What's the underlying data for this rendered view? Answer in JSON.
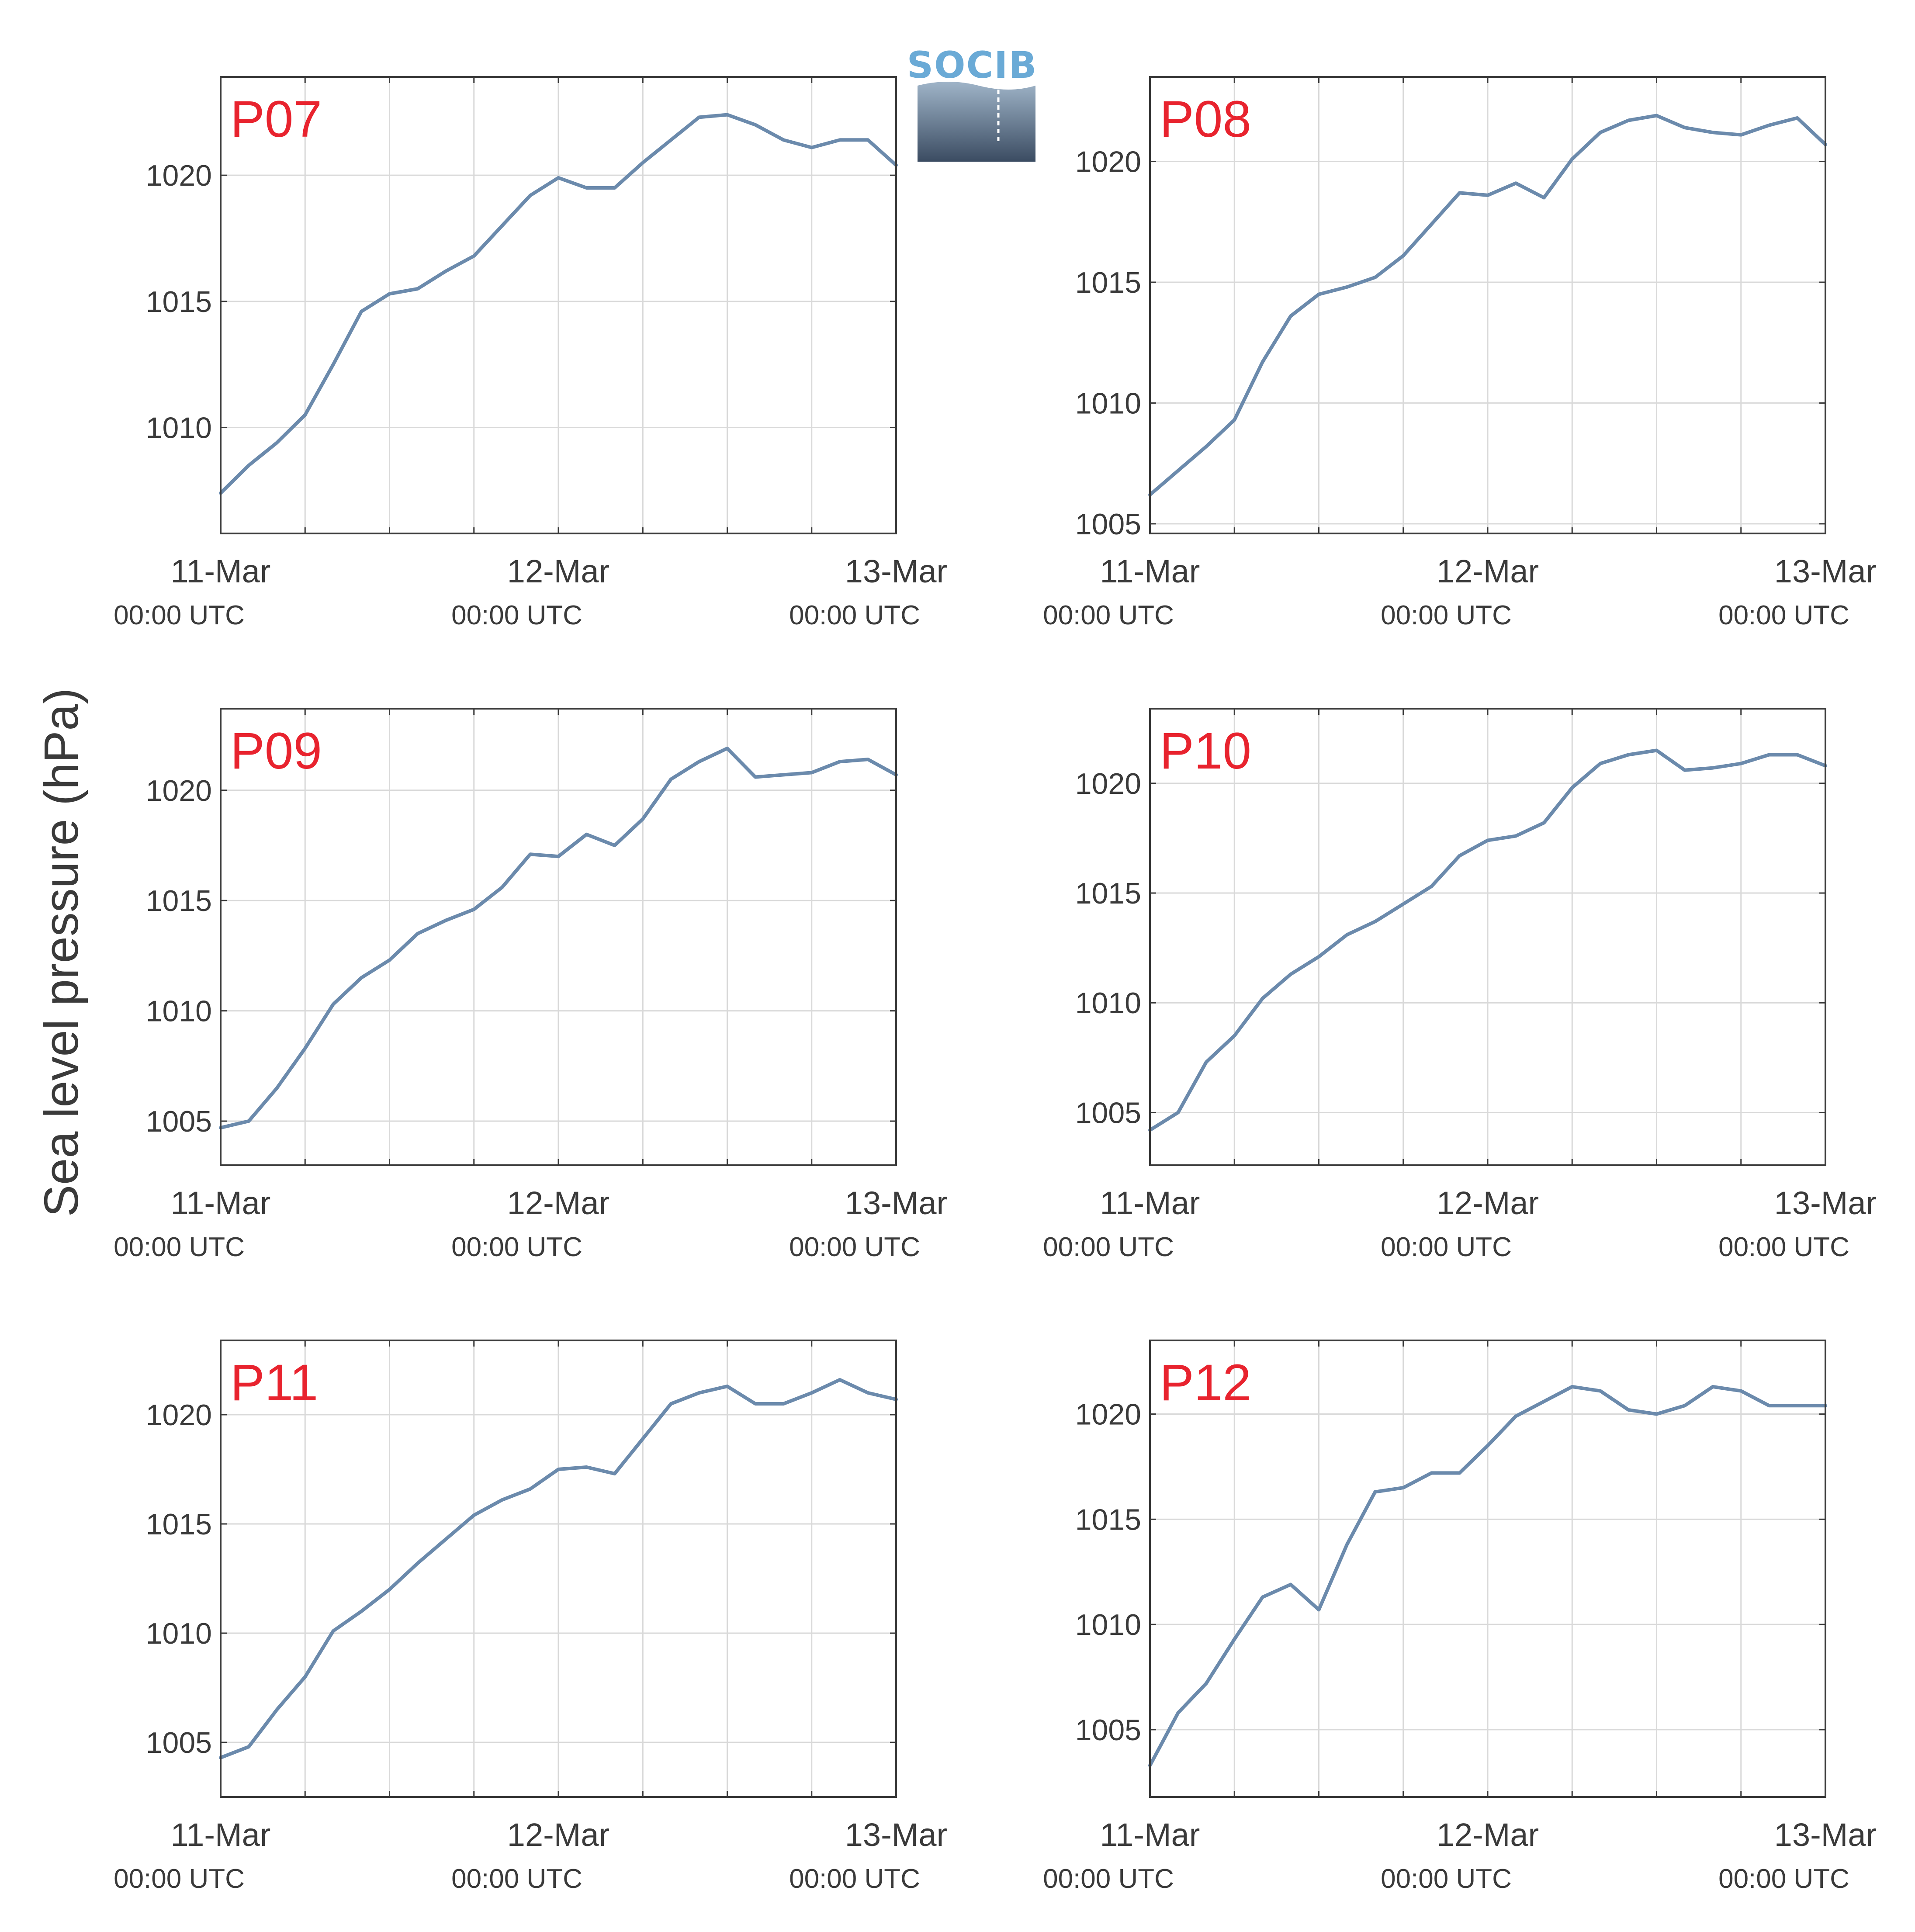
{
  "ylabel": "Sea level pressure (hPa)",
  "logo_text": "SOCIB",
  "colors": {
    "line": "#6b8aac",
    "panel_label": "#e8232e",
    "grid": "#d9d9d9",
    "axis": "#3a3a3a",
    "text": "#3a3a3a"
  },
  "x_ticks": [
    {
      "date": "11-Mar",
      "time": "00:00 UTC"
    },
    {
      "date": "12-Mar",
      "time": "00:00 UTC"
    },
    {
      "date": "13-Mar",
      "time": "00:00 UTC"
    }
  ],
  "chart_data": [
    {
      "type": "line",
      "panel_label": "P07",
      "xlim": [
        "2020-03-11T00:00",
        "2020-03-13T00:00"
      ],
      "ylim": [
        1005.8,
        1023.9
      ],
      "yticks": [
        1010,
        1015,
        1020
      ],
      "grid": true,
      "series": [
        {
          "x": [
            "2020-03-11T00:00",
            "2020-03-11T02:00",
            "2020-03-11T04:00",
            "2020-03-11T06:00",
            "2020-03-11T08:00",
            "2020-03-11T10:00",
            "2020-03-11T12:00",
            "2020-03-11T14:00",
            "2020-03-11T16:00",
            "2020-03-11T18:00",
            "2020-03-11T20:00",
            "2020-03-11T22:00",
            "2020-03-12T00:00",
            "2020-03-12T02:00",
            "2020-03-12T04:00",
            "2020-03-12T06:00",
            "2020-03-12T08:00",
            "2020-03-12T10:00",
            "2020-03-12T12:00",
            "2020-03-12T14:00",
            "2020-03-12T16:00",
            "2020-03-12T18:00",
            "2020-03-12T20:00",
            "2020-03-12T22:00",
            "2020-03-13T00:00"
          ],
          "y": [
            1007.4,
            1008.5,
            1009.4,
            1010.5,
            1012.5,
            1014.6,
            1015.3,
            1015.5,
            1016.2,
            1016.8,
            1018.0,
            1019.2,
            1019.9,
            1019.5,
            1019.5,
            1020.5,
            1021.4,
            1022.3,
            1022.4,
            1022.0,
            1021.4,
            1021.1,
            1021.4,
            1021.4,
            1020.4
          ]
        }
      ]
    },
    {
      "type": "line",
      "panel_label": "P08",
      "xlim": [
        "2020-03-11T00:00",
        "2020-03-13T00:00"
      ],
      "ylim": [
        1004.6,
        1023.5
      ],
      "yticks": [
        1005,
        1010,
        1015,
        1020
      ],
      "grid": true,
      "series": [
        {
          "x": [
            "2020-03-11T00:00",
            "2020-03-11T02:00",
            "2020-03-11T04:00",
            "2020-03-11T06:00",
            "2020-03-11T08:00",
            "2020-03-11T10:00",
            "2020-03-11T12:00",
            "2020-03-11T14:00",
            "2020-03-11T16:00",
            "2020-03-11T18:00",
            "2020-03-11T20:00",
            "2020-03-11T22:00",
            "2020-03-12T00:00",
            "2020-03-12T02:00",
            "2020-03-12T04:00",
            "2020-03-12T06:00",
            "2020-03-12T08:00",
            "2020-03-12T10:00",
            "2020-03-12T12:00",
            "2020-03-12T14:00",
            "2020-03-12T16:00",
            "2020-03-12T18:00",
            "2020-03-12T20:00",
            "2020-03-12T22:00",
            "2020-03-13T00:00"
          ],
          "y": [
            1006.2,
            1007.2,
            1008.2,
            1009.3,
            1011.7,
            1013.6,
            1014.5,
            1014.8,
            1015.2,
            1016.1,
            1017.4,
            1018.7,
            1018.6,
            1019.1,
            1018.5,
            1020.1,
            1021.2,
            1021.7,
            1021.9,
            1021.4,
            1021.2,
            1021.1,
            1021.5,
            1021.8,
            1020.7
          ]
        }
      ]
    },
    {
      "type": "line",
      "panel_label": "P09",
      "xlim": [
        "2020-03-11T00:00",
        "2020-03-13T00:00"
      ],
      "ylim": [
        1003.0,
        1023.7
      ],
      "yticks": [
        1005,
        1010,
        1015,
        1020
      ],
      "grid": true,
      "series": [
        {
          "x": [
            "2020-03-11T00:00",
            "2020-03-11T02:00",
            "2020-03-11T04:00",
            "2020-03-11T06:00",
            "2020-03-11T08:00",
            "2020-03-11T10:00",
            "2020-03-11T12:00",
            "2020-03-11T14:00",
            "2020-03-11T16:00",
            "2020-03-11T18:00",
            "2020-03-11T20:00",
            "2020-03-11T22:00",
            "2020-03-12T00:00",
            "2020-03-12T02:00",
            "2020-03-12T04:00",
            "2020-03-12T06:00",
            "2020-03-12T08:00",
            "2020-03-12T10:00",
            "2020-03-12T12:00",
            "2020-03-12T14:00",
            "2020-03-12T16:00",
            "2020-03-12T18:00",
            "2020-03-12T20:00",
            "2020-03-12T22:00",
            "2020-03-13T00:00"
          ],
          "y": [
            1004.7,
            1005.0,
            1006.5,
            1008.3,
            1010.3,
            1011.5,
            1012.3,
            1013.5,
            1014.1,
            1014.6,
            1015.6,
            1017.1,
            1017.0,
            1018.0,
            1017.5,
            1018.7,
            1020.5,
            1021.3,
            1021.9,
            1020.6,
            1020.7,
            1020.8,
            1021.3,
            1021.4,
            1020.7
          ]
        }
      ]
    },
    {
      "type": "line",
      "panel_label": "P10",
      "xlim": [
        "2020-03-11T00:00",
        "2020-03-13T00:00"
      ],
      "ylim": [
        1002.6,
        1023.4
      ],
      "yticks": [
        1005,
        1010,
        1015,
        1020
      ],
      "grid": true,
      "series": [
        {
          "x": [
            "2020-03-11T00:00",
            "2020-03-11T02:00",
            "2020-03-11T04:00",
            "2020-03-11T06:00",
            "2020-03-11T08:00",
            "2020-03-11T10:00",
            "2020-03-11T12:00",
            "2020-03-11T14:00",
            "2020-03-11T16:00",
            "2020-03-11T18:00",
            "2020-03-11T20:00",
            "2020-03-11T22:00",
            "2020-03-12T00:00",
            "2020-03-12T02:00",
            "2020-03-12T04:00",
            "2020-03-12T06:00",
            "2020-03-12T08:00",
            "2020-03-12T10:00",
            "2020-03-12T12:00",
            "2020-03-12T14:00",
            "2020-03-12T16:00",
            "2020-03-12T18:00",
            "2020-03-12T20:00",
            "2020-03-12T22:00",
            "2020-03-13T00:00"
          ],
          "y": [
            1004.2,
            1005.0,
            1007.3,
            1008.5,
            1010.2,
            1011.3,
            1012.1,
            1013.1,
            1013.7,
            1014.5,
            1015.3,
            1016.7,
            1017.4,
            1017.6,
            1018.2,
            1019.8,
            1020.9,
            1021.3,
            1021.5,
            1020.6,
            1020.7,
            1020.9,
            1021.3,
            1021.3,
            1020.8
          ]
        }
      ]
    },
    {
      "type": "line",
      "panel_label": "P11",
      "xlim": [
        "2020-03-11T00:00",
        "2020-03-13T00:00"
      ],
      "ylim": [
        1002.5,
        1023.4
      ],
      "yticks": [
        1005,
        1010,
        1015,
        1020
      ],
      "grid": true,
      "series": [
        {
          "x": [
            "2020-03-11T00:00",
            "2020-03-11T02:00",
            "2020-03-11T04:00",
            "2020-03-11T06:00",
            "2020-03-11T08:00",
            "2020-03-11T10:00",
            "2020-03-11T12:00",
            "2020-03-11T14:00",
            "2020-03-11T16:00",
            "2020-03-11T18:00",
            "2020-03-11T20:00",
            "2020-03-11T22:00",
            "2020-03-12T00:00",
            "2020-03-12T02:00",
            "2020-03-12T04:00",
            "2020-03-12T06:00",
            "2020-03-12T08:00",
            "2020-03-12T10:00",
            "2020-03-12T12:00",
            "2020-03-12T14:00",
            "2020-03-12T16:00",
            "2020-03-12T18:00",
            "2020-03-12T20:00",
            "2020-03-12T22:00",
            "2020-03-13T00:00"
          ],
          "y": [
            1004.3,
            1004.8,
            1006.5,
            1008.0,
            1010.1,
            1011.0,
            1012.0,
            1013.2,
            1014.3,
            1015.4,
            1016.1,
            1016.6,
            1017.5,
            1017.6,
            1017.3,
            1018.9,
            1020.5,
            1021.0,
            1021.3,
            1020.5,
            1020.5,
            1021.0,
            1021.6,
            1021.0,
            1020.7
          ]
        }
      ]
    },
    {
      "type": "line",
      "panel_label": "P12",
      "xlim": [
        "2020-03-11T00:00",
        "2020-03-13T00:00"
      ],
      "ylim": [
        1001.8,
        1023.5
      ],
      "yticks": [
        1005,
        1010,
        1015,
        1020
      ],
      "grid": true,
      "series": [
        {
          "x": [
            "2020-03-11T00:00",
            "2020-03-11T02:00",
            "2020-03-11T04:00",
            "2020-03-11T06:00",
            "2020-03-11T08:00",
            "2020-03-11T10:00",
            "2020-03-11T12:00",
            "2020-03-11T14:00",
            "2020-03-11T16:00",
            "2020-03-11T18:00",
            "2020-03-11T20:00",
            "2020-03-11T22:00",
            "2020-03-12T00:00",
            "2020-03-12T02:00",
            "2020-03-12T04:00",
            "2020-03-12T06:00",
            "2020-03-12T08:00",
            "2020-03-12T10:00",
            "2020-03-12T12:00",
            "2020-03-12T14:00",
            "2020-03-12T16:00",
            "2020-03-12T18:00",
            "2020-03-12T20:00",
            "2020-03-12T22:00",
            "2020-03-13T00:00"
          ],
          "y": [
            1003.3,
            1005.8,
            1007.2,
            1009.3,
            1011.3,
            1011.9,
            1010.7,
            1013.8,
            1016.3,
            1016.5,
            1017.2,
            1017.2,
            1018.5,
            1019.9,
            1020.6,
            1021.3,
            1021.1,
            1020.2,
            1020.0,
            1020.4,
            1021.3,
            1021.1,
            1020.4,
            1020.4,
            1020.4
          ]
        }
      ]
    }
  ]
}
